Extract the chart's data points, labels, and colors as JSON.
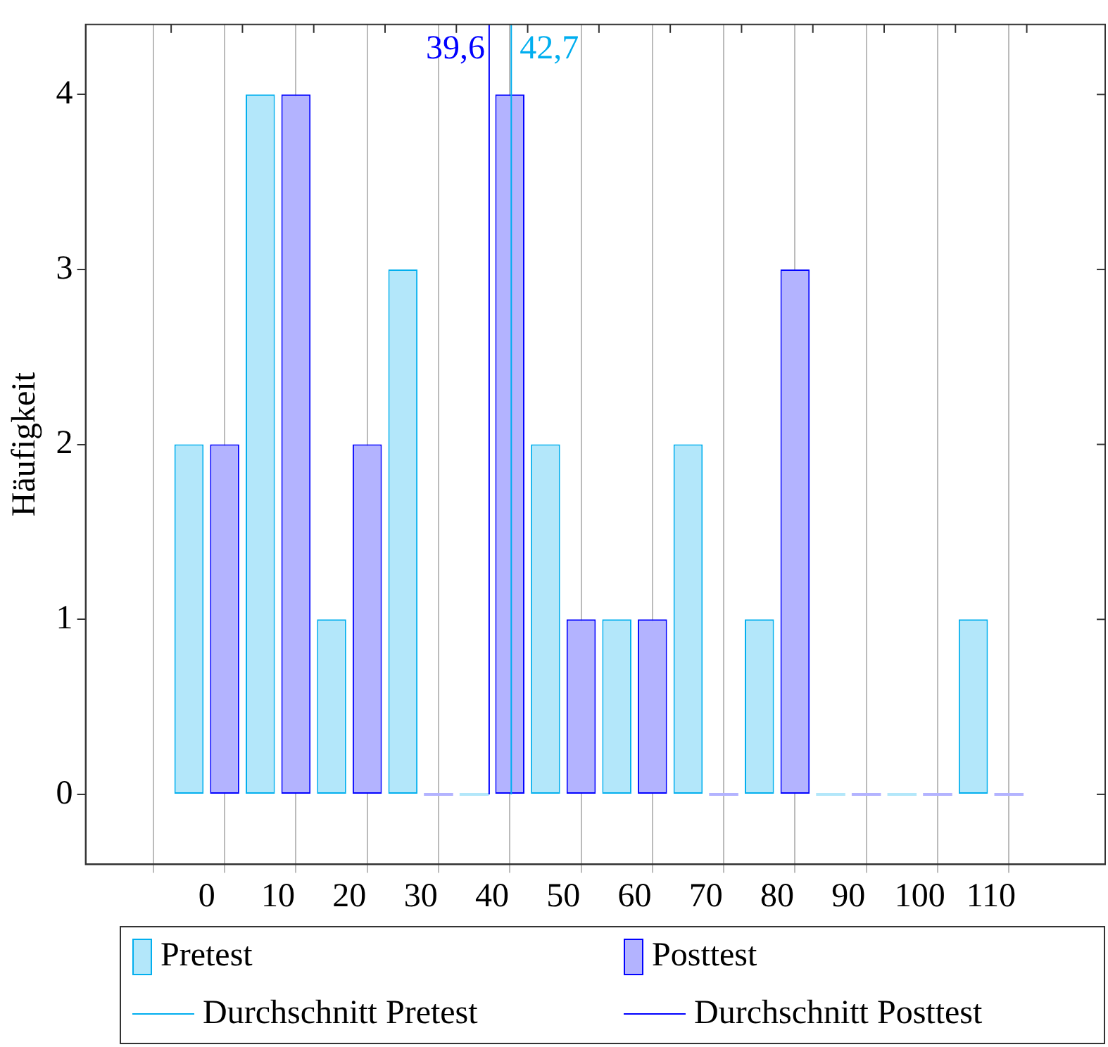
{
  "chart_data": {
    "type": "bar",
    "ylabel": "Häufigkeit",
    "legend": "bottom",
    "grid": "x",
    "xlim": [
      -17,
      126
    ],
    "ylim": [
      -0.4,
      4.4
    ],
    "xticks": [
      {
        "value": -5,
        "label": null
      },
      0,
      {
        "value": 5,
        "label": null
      },
      10,
      {
        "value": 15,
        "label": null
      },
      20,
      {
        "value": 25,
        "label": null
      },
      30,
      {
        "value": 35,
        "label": null
      },
      40,
      {
        "value": 45,
        "label": null
      },
      50,
      {
        "value": 55,
        "label": null
      },
      60,
      {
        "value": 65,
        "label": null
      },
      70,
      {
        "value": 75,
        "label": null
      },
      80,
      {
        "value": 85,
        "label": null
      },
      90,
      {
        "value": 95,
        "label": null
      },
      100,
      {
        "value": 105,
        "label": null
      },
      110,
      {
        "value": 115,
        "label": null
      }
    ],
    "yticks": [
      0,
      1,
      2,
      3,
      4
    ],
    "series": [
      {
        "name": "Pretest",
        "color": "#b3e7fa",
        "x": [
          -2.5,
          7.5,
          17.5,
          27.5,
          37.5,
          47.5,
          57.5,
          67.5,
          77.5,
          87.5,
          97.5,
          107.5
        ],
        "values": [
          2,
          4,
          1,
          3,
          0,
          2,
          1,
          2,
          1,
          0,
          0,
          1
        ]
      },
      {
        "name": "Posttest",
        "color": "#b3b3ff",
        "x": [
          2.5,
          12.5,
          22.5,
          32.5,
          42.5,
          52.5,
          62.5,
          72.5,
          82.5,
          92.5,
          102.5,
          112.5
        ],
        "values": [
          2,
          4,
          2,
          0,
          4,
          1,
          1,
          0,
          3,
          0,
          0,
          0
        ]
      },
      {
        "name": "Durchschnitt Pretest",
        "type": "line",
        "color": "#00aeef",
        "x": [
          42.7,
          42.7
        ],
        "values": [
          0,
          4.4
        ]
      },
      {
        "name": "Durchschnitt Posttest",
        "type": "line",
        "color": "#0000ff",
        "x": [
          39.6,
          39.6
        ],
        "values": [
          0,
          4.4
        ]
      }
    ],
    "annotations": [
      {
        "text": "39,6",
        "x": 39.6,
        "y": 4.4
      },
      {
        "text": "42,7",
        "x": 42.7,
        "y": 4.4
      }
    ]
  }
}
